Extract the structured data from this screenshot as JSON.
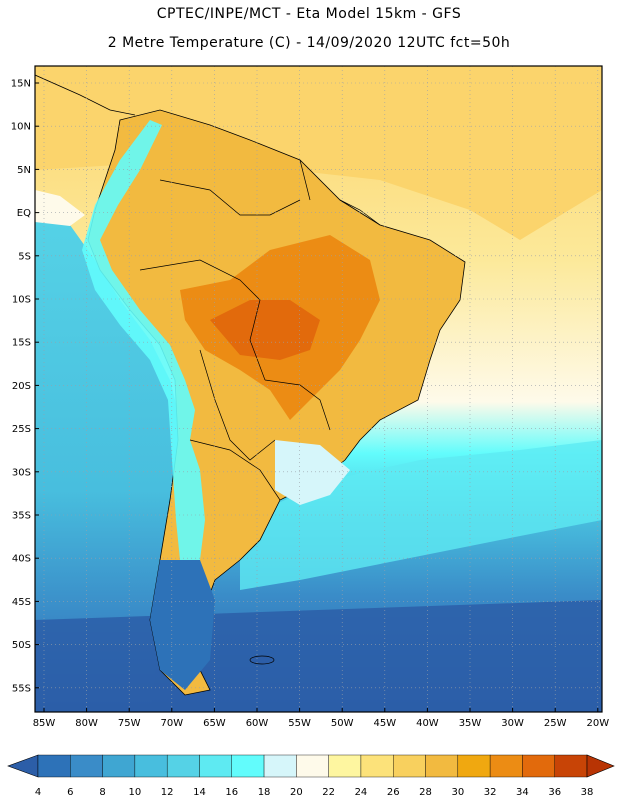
{
  "title_line1": "CPTEC/INPE/MCT -  Eta Model 15km - GFS",
  "title_line2": "2 Metre Temperature (C) - 14/09/2020 12UTC fct=50h",
  "lat_labels": [
    "15N",
    "10N",
    "5N",
    "EQ",
    "5S",
    "10S",
    "15S",
    "20S",
    "25S",
    "30S",
    "35S",
    "40S",
    "45S",
    "50S",
    "55S"
  ],
  "lon_labels": [
    "85W",
    "80W",
    "75W",
    "70W",
    "65W",
    "60W",
    "55W",
    "50W",
    "45W",
    "40W",
    "35W",
    "30W",
    "25W",
    "20W"
  ],
  "colorbar": {
    "labels": [
      "4",
      "6",
      "8",
      "10",
      "12",
      "14",
      "16",
      "18",
      "20",
      "22",
      "24",
      "26",
      "28",
      "30",
      "32",
      "34",
      "36",
      "38"
    ],
    "colors": [
      "#2c5ea8",
      "#2d72b8",
      "#3a8cc8",
      "#3fa6d2",
      "#48bede",
      "#55d2e6",
      "#5eeaf2",
      "#62fcfc",
      "#d6f6fa",
      "#fefaea",
      "#fef6a0",
      "#fce27a",
      "#f8d05e",
      "#f2ba40",
      "#f0a810",
      "#ec8c14",
      "#e26a0c",
      "#c84406",
      "#b83404"
    ]
  },
  "colors": {
    "ocean_warm": "#fbd46c",
    "ocean_mid": "#fce99a",
    "ocean_cool": "#4cc0de",
    "ocean_cold": "#2c5ea8",
    "land_hot": "#ec8c14",
    "land_warm": "#f2ba40",
    "andes": "#62fcfc",
    "border": "#000000",
    "grid": "#9aa0a8"
  }
}
